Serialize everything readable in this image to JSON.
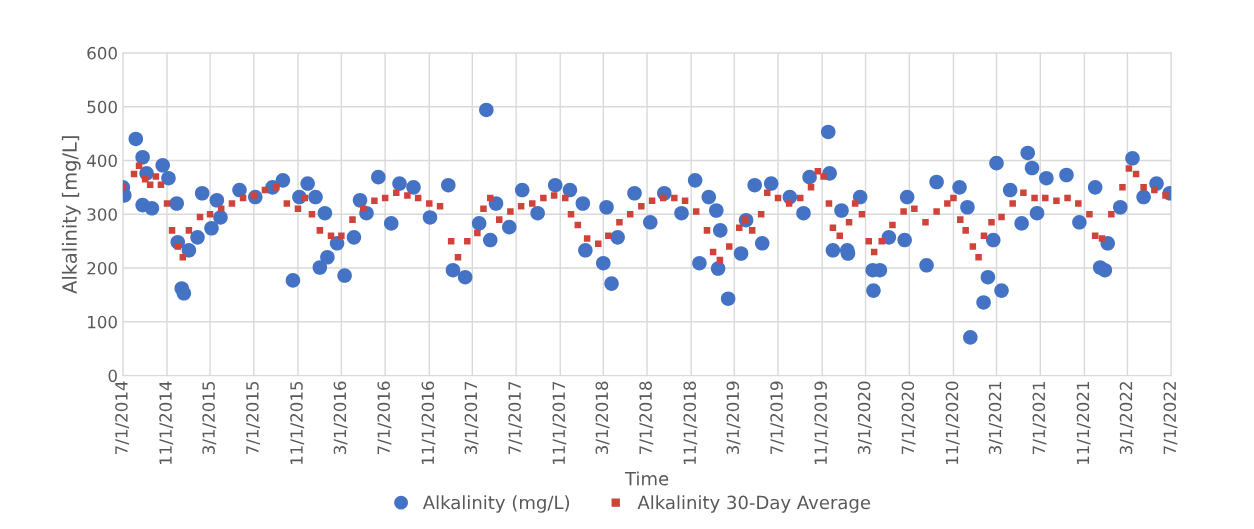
{
  "chart_data": {
    "type": "scatter",
    "xlabel": "Time",
    "ylabel": "Alkalinity [mg/L]",
    "ylim": [
      0,
      600
    ],
    "yticks": [
      0,
      100,
      200,
      300,
      400,
      500,
      600
    ],
    "xlim": [
      "2014-07-01",
      "2022-07-01"
    ],
    "xticks": [
      {
        "value": "2014-07-01",
        "label": "7/1/2014"
      },
      {
        "value": "2014-11-01",
        "label": "11/1/2014"
      },
      {
        "value": "2015-03-01",
        "label": "3/1/2015"
      },
      {
        "value": "2015-07-01",
        "label": "7/1/2015"
      },
      {
        "value": "2015-11-01",
        "label": "11/1/2015"
      },
      {
        "value": "2016-03-01",
        "label": "3/1/2016"
      },
      {
        "value": "2016-07-01",
        "label": "7/1/2016"
      },
      {
        "value": "2016-11-01",
        "label": "11/1/2016"
      },
      {
        "value": "2017-03-01",
        "label": "3/1/2017"
      },
      {
        "value": "2017-07-01",
        "label": "7/1/2017"
      },
      {
        "value": "2017-11-01",
        "label": "11/1/2017"
      },
      {
        "value": "2018-03-01",
        "label": "3/1/2018"
      },
      {
        "value": "2018-07-01",
        "label": "7/1/2018"
      },
      {
        "value": "2018-11-01",
        "label": "11/1/2018"
      },
      {
        "value": "2019-03-01",
        "label": "3/1/2019"
      },
      {
        "value": "2019-07-01",
        "label": "7/1/2019"
      },
      {
        "value": "2019-11-01",
        "label": "11/1/2019"
      },
      {
        "value": "2020-03-01",
        "label": "3/1/2020"
      },
      {
        "value": "2020-07-01",
        "label": "7/1/2020"
      },
      {
        "value": "2020-11-01",
        "label": "11/1/2020"
      },
      {
        "value": "2021-03-01",
        "label": "3/1/2021"
      },
      {
        "value": "2021-07-01",
        "label": "7/1/2021"
      },
      {
        "value": "2021-11-01",
        "label": "11/1/2021"
      },
      {
        "value": "2022-03-01",
        "label": "3/1/2022"
      },
      {
        "value": "2022-07-01",
        "label": "7/1/2022"
      }
    ],
    "grid": true,
    "legend": "bottom",
    "series": [
      {
        "name": "Alkalinity (mg/L)",
        "color": "#4472c4",
        "marker": "circle",
        "x": [
          "2014-07-01",
          "2014-07-05",
          "2014-08-06",
          "2014-08-25",
          "2014-09-05",
          "2014-08-25",
          "2014-09-20",
          "2014-10-20",
          "2014-11-05",
          "2014-11-28",
          "2014-12-01",
          "2014-12-12",
          "2014-12-18",
          "2015-01-01",
          "2015-01-25",
          "2015-02-07",
          "2015-03-05",
          "2015-03-20",
          "2015-03-30",
          "2015-05-22",
          "2015-07-05",
          "2015-08-22",
          "2015-09-20",
          "2015-10-18",
          "2015-11-05",
          "2015-11-28",
          "2015-12-20",
          "2016-01-01",
          "2016-01-15",
          "2016-01-22",
          "2016-02-18",
          "2016-03-10",
          "2016-04-05",
          "2016-04-22",
          "2016-05-10",
          "2016-06-12",
          "2016-07-18",
          "2016-08-10",
          "2016-09-18",
          "2016-11-03",
          "2016-12-24",
          "2017-01-06",
          "2017-02-09",
          "2017-03-20",
          "2017-04-09",
          "2017-04-20",
          "2017-05-06",
          "2017-06-12",
          "2017-07-18",
          "2017-08-30",
          "2017-10-18",
          "2017-11-28",
          "2018-01-03",
          "2018-01-10",
          "2018-03-01",
          "2018-03-24",
          "2018-03-10",
          "2018-04-10",
          "2018-05-27",
          "2018-07-10",
          "2018-08-18",
          "2018-10-05",
          "2018-11-12",
          "2018-11-24",
          "2018-12-20",
          "2019-01-10",
          "2019-01-21",
          "2019-01-15",
          "2019-02-12",
          "2019-03-20",
          "2019-04-03",
          "2019-04-27",
          "2019-05-18",
          "2019-06-12",
          "2019-08-03",
          "2019-09-10",
          "2019-09-27",
          "2019-11-18",
          "2019-11-22",
          "2019-12-01",
          "2019-12-25",
          "2020-01-12",
          "2020-01-10",
          "2020-02-15",
          "2020-03-21",
          "2020-03-23",
          "2020-04-10",
          "2020-05-05",
          "2020-06-18",
          "2020-06-25",
          "2020-08-18",
          "2020-09-15",
          "2020-11-18",
          "2020-12-10",
          "2020-12-18",
          "2021-01-24",
          "2021-02-05",
          "2021-02-20",
          "2021-03-01",
          "2021-03-15",
          "2021-04-08",
          "2021-05-10",
          "2021-05-27",
          "2021-06-08",
          "2021-06-22",
          "2021-07-18",
          "2021-09-12",
          "2021-10-18",
          "2021-12-01",
          "2021-12-15",
          "2021-12-28",
          "2022-01-05",
          "2022-02-09",
          "2022-03-15",
          "2022-04-15",
          "2022-05-21",
          "2022-06-27"
        ],
        "values": [
          350,
          335,
          440,
          406,
          376,
          317,
          311,
          391,
          367,
          320,
          248,
          162,
          153,
          233,
          257,
          339,
          274,
          326,
          294,
          345,
          332,
          350,
          363,
          177,
          332,
          357,
          332,
          201,
          302,
          220,
          246,
          186,
          257,
          326,
          302,
          369,
          283,
          357,
          350,
          294,
          354,
          196,
          183,
          283,
          494,
          252,
          320,
          276,
          345,
          302,
          354,
          345,
          320,
          233,
          209,
          171,
          313,
          257,
          339,
          285,
          339,
          302,
          363,
          209,
          332,
          307,
          270,
          199,
          143,
          227,
          289,
          354,
          246,
          357,
          332,
          302,
          369,
          453,
          376,
          233,
          307,
          227,
          233,
          332,
          196,
          158,
          196,
          257,
          252,
          332,
          205,
          360,
          350,
          313,
          71,
          136,
          183,
          252,
          395,
          158,
          345,
          283,
          414,
          386,
          302,
          367,
          373,
          285,
          350,
          201,
          196,
          246,
          313,
          404,
          332,
          357,
          339
        ]
      },
      {
        "name": "Alkalinity 30-Day Average",
        "color": "#d0433a",
        "marker": "square",
        "x": [
          "2014-07-01",
          "2014-08-01",
          "2014-08-15",
          "2014-09-01",
          "2014-09-15",
          "2014-10-01",
          "2014-10-15",
          "2014-11-01",
          "2014-11-15",
          "2014-12-01",
          "2014-12-15",
          "2015-01-01",
          "2015-02-01",
          "2015-03-01",
          "2015-04-01",
          "2015-05-01",
          "2015-06-01",
          "2015-07-01",
          "2015-08-01",
          "2015-09-01",
          "2015-10-01",
          "2015-11-01",
          "2015-11-20",
          "2015-12-10",
          "2016-01-01",
          "2016-02-01",
          "2016-03-01",
          "2016-04-01",
          "2016-05-01",
          "2016-06-01",
          "2016-07-01",
          "2016-08-01",
          "2016-09-01",
          "2016-10-01",
          "2016-11-01",
          "2016-12-01",
          "2017-01-01",
          "2017-01-20",
          "2017-02-15",
          "2017-03-15",
          "2017-04-01",
          "2017-04-20",
          "2017-05-15",
          "2017-06-15",
          "2017-07-15",
          "2017-08-15",
          "2017-09-15",
          "2017-10-15",
          "2017-11-15",
          "2017-12-01",
          "2017-12-20",
          "2018-01-15",
          "2018-02-15",
          "2018-03-15",
          "2018-04-15",
          "2018-05-15",
          "2018-06-15",
          "2018-07-15",
          "2018-08-15",
          "2018-09-15",
          "2018-10-15",
          "2018-11-15",
          "2018-12-15",
          "2019-01-01",
          "2019-01-20",
          "2019-02-15",
          "2019-03-15",
          "2019-04-01",
          "2019-04-20",
          "2019-05-15",
          "2019-06-01",
          "2019-07-01",
          "2019-08-01",
          "2019-09-01",
          "2019-10-01",
          "2019-10-20",
          "2019-11-05",
          "2019-11-20",
          "2019-12-01",
          "2019-12-20",
          "2020-01-15",
          "2020-02-01",
          "2020-02-20",
          "2020-03-10",
          "2020-03-25",
          "2020-04-15",
          "2020-05-15",
          "2020-06-15",
          "2020-07-15",
          "2020-08-15",
          "2020-09-15",
          "2020-10-15",
          "2020-11-01",
          "2020-11-20",
          "2020-12-05",
          "2020-12-25",
          "2021-01-10",
          "2021-01-25",
          "2021-02-15",
          "2021-03-15",
          "2021-04-15",
          "2021-05-15",
          "2021-06-15",
          "2021-07-15",
          "2021-08-15",
          "2021-09-15",
          "2021-10-15",
          "2021-11-15",
          "2021-12-01",
          "2021-12-20",
          "2022-01-15",
          "2022-02-15",
          "2022-03-05",
          "2022-03-25",
          "2022-04-15",
          "2022-05-15",
          "2022-06-15"
        ],
        "values": [
          350,
          375,
          390,
          365,
          355,
          370,
          355,
          320,
          270,
          240,
          220,
          270,
          295,
          300,
          310,
          320,
          330,
          335,
          345,
          350,
          320,
          310,
          330,
          300,
          270,
          260,
          260,
          290,
          310,
          325,
          330,
          340,
          335,
          330,
          320,
          315,
          250,
          220,
          250,
          265,
          310,
          330,
          290,
          305,
          315,
          320,
          330,
          335,
          330,
          300,
          280,
          255,
          245,
          260,
          285,
          300,
          315,
          325,
          330,
          330,
          325,
          305,
          270,
          230,
          215,
          240,
          275,
          290,
          270,
          300,
          340,
          330,
          320,
          330,
          350,
          380,
          370,
          320,
          275,
          260,
          285,
          320,
          300,
          250,
          230,
          250,
          280,
          305,
          310,
          285,
          305,
          320,
          330,
          290,
          270,
          240,
          220,
          260,
          285,
          295,
          320,
          340,
          330,
          330,
          325,
          330,
          320,
          300,
          260,
          255,
          300,
          350,
          385,
          375,
          350,
          345,
          335
        ]
      }
    ]
  }
}
